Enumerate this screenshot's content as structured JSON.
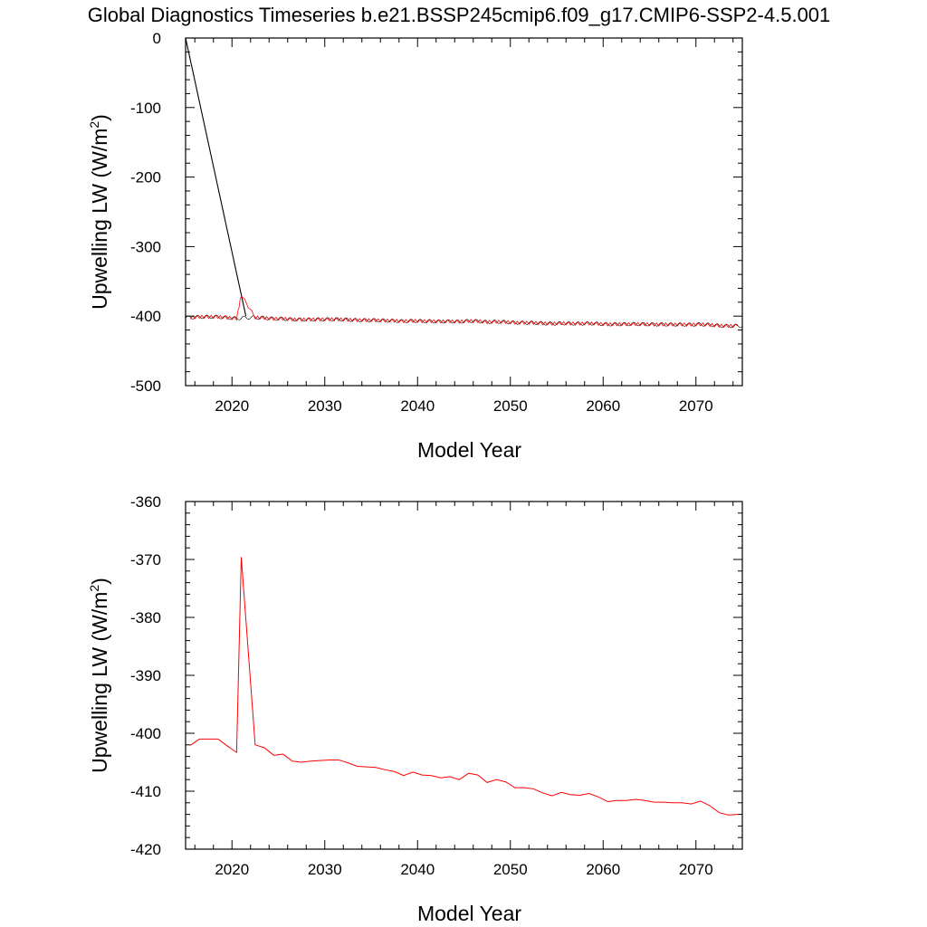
{
  "title": "Global Diagnostics Timeseries b.e21.BSSP245cmip6.f09_g17.CMIP6-SSP2-4.5.001",
  "colors": {
    "annual": "#ff0000",
    "monthly": "#000000",
    "axis": "#000000"
  },
  "chart_data": [
    {
      "type": "line",
      "xlabel": "Model Year",
      "ylabel": "Upwelling LW (W/m",
      "ylabel_sup": "2",
      "ylabel_end": ")",
      "xlim": [
        2015,
        2075
      ],
      "ylim": [
        -500,
        0
      ],
      "xticks": [
        2020,
        2030,
        2040,
        2050,
        2060,
        2070
      ],
      "xtick_labels": [
        "2020",
        "2030",
        "2040",
        "2050",
        "2060",
        "2070"
      ],
      "yticks": [
        0,
        -100,
        -200,
        -300,
        -400,
        -500
      ],
      "ytick_labels": [
        "0",
        "-100",
        "-200",
        "-300",
        "-400",
        "-500"
      ],
      "series": [
        {
          "kind": "monthly",
          "color": "#000000",
          "x": [
            2015.0,
            2021.5,
            2021.6
          ],
          "y": [
            0,
            -400,
            -402
          ],
          "seasonal_amplitude": 2.5
        },
        {
          "kind": "annual",
          "color": "#ff0000",
          "x": [
            2015.5,
            2016.5,
            2017.5,
            2018.5,
            2019.5,
            2020.5,
            2021.0,
            2022.5,
            2023.5,
            2024.5,
            2025.5,
            2026.5,
            2027.5,
            2028.5,
            2029.5,
            2030.5,
            2031.5,
            2032.5,
            2033.5,
            2034.5,
            2035.5,
            2036.5,
            2037.5,
            2038.5,
            2039.5,
            2040.5,
            2041.5,
            2042.5,
            2043.5,
            2044.5,
            2045.5,
            2046.5,
            2047.5,
            2048.5,
            2049.5,
            2050.5,
            2051.5,
            2052.5,
            2053.5,
            2054.5,
            2055.5,
            2056.5,
            2057.5,
            2058.5,
            2059.5,
            2060.5,
            2061.5,
            2062.5,
            2063.5,
            2064.5,
            2065.5,
            2066.5,
            2067.5,
            2068.5,
            2069.5,
            2070.5,
            2071.5,
            2072.5,
            2073.5,
            2074.5
          ],
          "y": [
            -402.1,
            -401.0,
            -401.0,
            -401.0,
            -402.2,
            -403.3,
            -369.6,
            -402.0,
            -402.5,
            -403.8,
            -403.6,
            -404.8,
            -405.0,
            -404.8,
            -404.7,
            -404.6,
            -404.6,
            -405.1,
            -405.7,
            -405.8,
            -405.9,
            -406.3,
            -406.6,
            -407.3,
            -406.7,
            -407.2,
            -407.3,
            -407.7,
            -407.5,
            -408.0,
            -406.9,
            -407.2,
            -408.5,
            -408.0,
            -408.4,
            -409.4,
            -409.4,
            -409.6,
            -410.3,
            -410.8,
            -410.2,
            -410.6,
            -410.7,
            -410.4,
            -411.0,
            -411.8,
            -411.6,
            -411.6,
            -411.4,
            -411.6,
            -411.9,
            -411.9,
            -412.0,
            -412.0,
            -412.2,
            -411.7,
            -412.5,
            -413.7,
            -414.1,
            -414.0
          ]
        }
      ]
    },
    {
      "type": "line",
      "xlabel": "Model Year",
      "ylabel": "Upwelling LW (W/m",
      "ylabel_sup": "2",
      "ylabel_end": ")",
      "xlim": [
        2015,
        2075
      ],
      "ylim": [
        -420,
        -360
      ],
      "xticks": [
        2020,
        2030,
        2040,
        2050,
        2060,
        2070
      ],
      "xtick_labels": [
        "2020",
        "2030",
        "2040",
        "2050",
        "2060",
        "2070"
      ],
      "yticks": [
        -360,
        -370,
        -380,
        -390,
        -400,
        -410,
        -420
      ],
      "ytick_labels": [
        "-360",
        "-370",
        "-380",
        "-390",
        "-400",
        "-410",
        "-420"
      ],
      "series": [
        {
          "kind": "annual",
          "color": "#ff0000",
          "x": [
            2015.5,
            2016.5,
            2017.5,
            2018.5,
            2019.5,
            2020.5,
            2021.0,
            2022.5,
            2023.5,
            2024.5,
            2025.5,
            2026.5,
            2027.5,
            2028.5,
            2029.5,
            2030.5,
            2031.5,
            2032.5,
            2033.5,
            2034.5,
            2035.5,
            2036.5,
            2037.5,
            2038.5,
            2039.5,
            2040.5,
            2041.5,
            2042.5,
            2043.5,
            2044.5,
            2045.5,
            2046.5,
            2047.5,
            2048.5,
            2049.5,
            2050.5,
            2051.5,
            2052.5,
            2053.5,
            2054.5,
            2055.5,
            2056.5,
            2057.5,
            2058.5,
            2059.5,
            2060.5,
            2061.5,
            2062.5,
            2063.5,
            2064.5,
            2065.5,
            2066.5,
            2067.5,
            2068.5,
            2069.5,
            2070.5,
            2071.5,
            2072.5,
            2073.5,
            2074.5
          ],
          "y": [
            -402.1,
            -401.0,
            -401.0,
            -401.0,
            -402.2,
            -403.3,
            -369.6,
            -402.0,
            -402.5,
            -403.8,
            -403.6,
            -404.8,
            -405.0,
            -404.8,
            -404.7,
            -404.6,
            -404.6,
            -405.1,
            -405.7,
            -405.8,
            -405.9,
            -406.3,
            -406.6,
            -407.3,
            -406.7,
            -407.2,
            -407.3,
            -407.7,
            -407.5,
            -408.0,
            -406.9,
            -407.2,
            -408.5,
            -408.0,
            -408.4,
            -409.4,
            -409.4,
            -409.6,
            -410.3,
            -410.8,
            -410.2,
            -410.6,
            -410.7,
            -410.4,
            -411.0,
            -411.8,
            -411.6,
            -411.6,
            -411.4,
            -411.6,
            -411.9,
            -411.9,
            -412.0,
            -412.0,
            -412.2,
            -411.7,
            -412.5,
            -413.7,
            -414.1,
            -414.0
          ]
        }
      ]
    }
  ]
}
